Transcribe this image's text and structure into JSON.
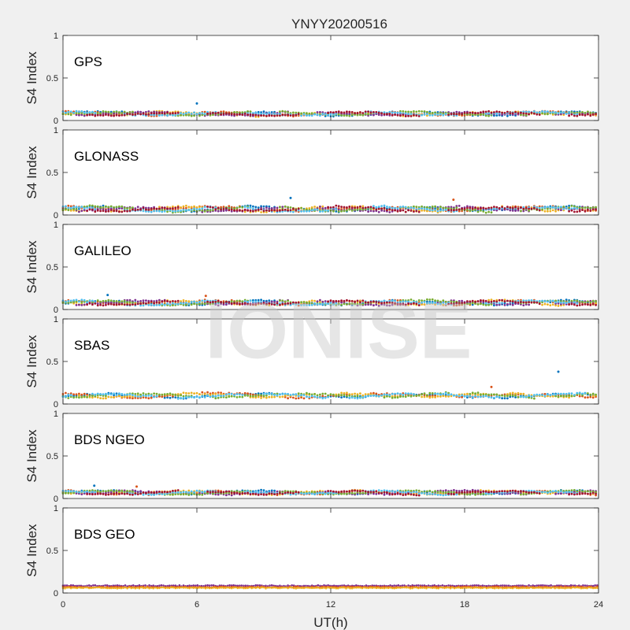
{
  "figure": {
    "title": "YNYY20200516",
    "xlabel": "UT(h)",
    "watermark": "IONISE",
    "x_ticks": [
      "0",
      "6",
      "12",
      "18",
      "24"
    ]
  },
  "chart_data": [
    {
      "type": "scatter",
      "panel_label": "GPS",
      "ylabel": "S4 Index",
      "xlim": [
        0,
        24
      ],
      "ylim": [
        0,
        1
      ],
      "y_ticks": [
        "0",
        "0.5",
        "1"
      ],
      "grid": false,
      "baseline": 0.08,
      "spread": 0.03,
      "outliers": [
        {
          "x": 6.0,
          "y": 0.2
        }
      ],
      "colors": [
        "#0072BD",
        "#D95319",
        "#EDB120",
        "#7E2F8E",
        "#77AC30",
        "#4DBEEE",
        "#A2142F"
      ]
    },
    {
      "type": "scatter",
      "panel_label": "GLONASS",
      "ylabel": "S4 Index",
      "xlim": [
        0,
        24
      ],
      "ylim": [
        0,
        1
      ],
      "y_ticks": [
        "0",
        "0.5",
        "1"
      ],
      "grid": false,
      "baseline": 0.07,
      "spread": 0.04,
      "outliers": [
        {
          "x": 10.2,
          "y": 0.2
        },
        {
          "x": 17.5,
          "y": 0.18
        }
      ],
      "colors": [
        "#0072BD",
        "#D95319",
        "#EDB120",
        "#7E2F8E",
        "#77AC30",
        "#4DBEEE",
        "#A2142F"
      ]
    },
    {
      "type": "scatter",
      "panel_label": "GALILEO",
      "ylabel": "S4 Index",
      "xlim": [
        0,
        24
      ],
      "ylim": [
        0,
        1
      ],
      "y_ticks": [
        "0",
        "0.5",
        "1"
      ],
      "grid": false,
      "baseline": 0.08,
      "spread": 0.035,
      "outliers": [
        {
          "x": 2.0,
          "y": 0.17
        },
        {
          "x": 6.4,
          "y": 0.16
        }
      ],
      "colors": [
        "#0072BD",
        "#D95319",
        "#EDB120",
        "#7E2F8E",
        "#77AC30",
        "#4DBEEE",
        "#A2142F"
      ]
    },
    {
      "type": "scatter",
      "panel_label": "SBAS",
      "ylabel": "S4 Index",
      "xlim": [
        0,
        24
      ],
      "ylim": [
        0,
        1
      ],
      "y_ticks": [
        "0",
        "0.5",
        "1"
      ],
      "grid": false,
      "baseline": 0.1,
      "spread": 0.035,
      "outliers": [
        {
          "x": 22.2,
          "y": 0.38
        },
        {
          "x": 19.2,
          "y": 0.2
        }
      ],
      "colors": [
        "#0072BD",
        "#D95319",
        "#EDB120",
        "#77AC30",
        "#4DBEEE"
      ]
    },
    {
      "type": "scatter",
      "panel_label": "BDS NGEO",
      "ylabel": "S4 Index",
      "xlim": [
        0,
        24
      ],
      "ylim": [
        0,
        1
      ],
      "y_ticks": [
        "0",
        "0.5",
        "1"
      ],
      "grid": false,
      "baseline": 0.07,
      "spread": 0.03,
      "outliers": [
        {
          "x": 1.4,
          "y": 0.15
        },
        {
          "x": 3.3,
          "y": 0.14
        }
      ],
      "colors": [
        "#0072BD",
        "#D95319",
        "#EDB120",
        "#7E2F8E",
        "#77AC30",
        "#4DBEEE",
        "#A2142F"
      ]
    },
    {
      "type": "scatter",
      "panel_label": "BDS GEO",
      "ylabel": "S4 Index",
      "xlim": [
        0,
        24
      ],
      "ylim": [
        0,
        1
      ],
      "y_ticks": [
        "0",
        "0.5",
        "1"
      ],
      "grid": false,
      "bands": [
        {
          "y": 0.085,
          "color": "#7E2F8E"
        },
        {
          "y": 0.07,
          "color": "#D95319"
        },
        {
          "y": 0.06,
          "color": "#EDB120"
        }
      ],
      "colors": [
        "#7E2F8E",
        "#D95319",
        "#EDB120"
      ]
    }
  ]
}
